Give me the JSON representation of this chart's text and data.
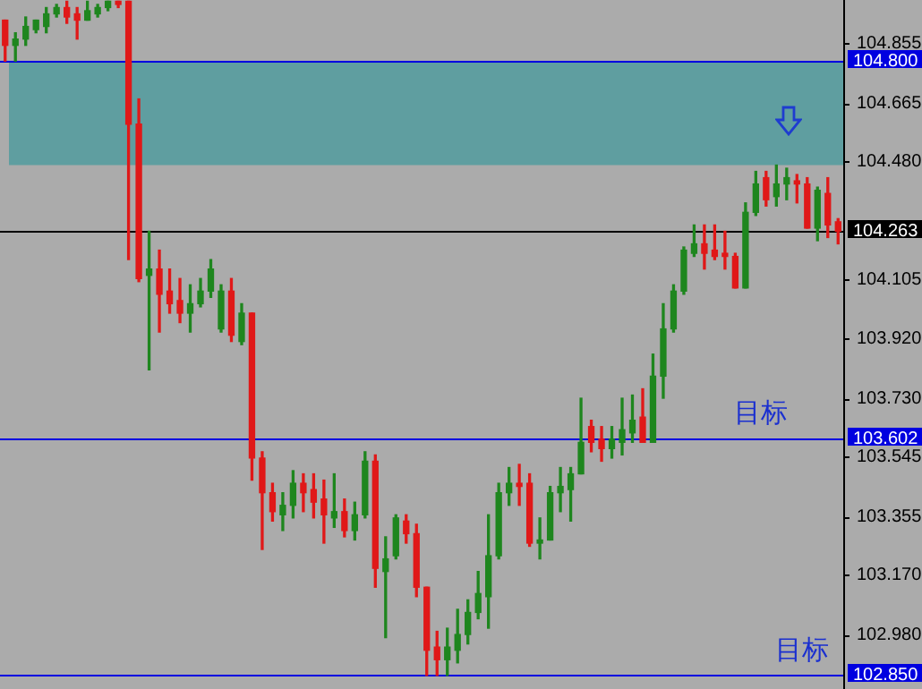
{
  "chart_data": {
    "type": "candlestick",
    "categories": [
      null,
      null,
      null,
      null,
      null,
      null,
      null,
      null,
      null,
      null,
      null,
      null,
      null,
      null,
      null,
      null,
      null,
      null,
      null,
      null,
      null,
      null,
      null,
      null,
      null,
      null,
      null,
      null,
      null,
      null,
      null,
      null,
      null,
      null,
      null,
      null,
      null,
      null,
      null,
      null,
      null,
      null,
      null,
      null,
      null,
      null,
      null,
      null,
      null,
      null,
      null,
      null,
      null,
      null,
      null,
      null,
      null,
      null,
      null,
      null,
      null,
      null,
      null,
      null,
      null,
      null,
      null,
      null,
      null,
      null,
      null,
      null,
      null,
      null,
      null,
      null,
      null,
      null,
      null,
      null,
      null,
      null
    ],
    "ohlc": [
      [
        104.93,
        104.93,
        104.8,
        104.85
      ],
      [
        104.85,
        104.89,
        104.8,
        104.87
      ],
      [
        104.87,
        104.94,
        104.85,
        104.91
      ],
      [
        104.9,
        104.93,
        104.89,
        104.93
      ],
      [
        104.91,
        104.97,
        104.89,
        104.95
      ],
      [
        104.95,
        104.98,
        104.94,
        104.97
      ],
      [
        104.97,
        104.99,
        104.92,
        104.94
      ],
      [
        104.95,
        104.97,
        104.87,
        104.93
      ],
      [
        104.93,
        104.99,
        104.93,
        104.96
      ],
      [
        104.95,
        104.98,
        104.94,
        104.97
      ],
      [
        104.97,
        104.99,
        104.96,
        104.99
      ],
      [
        104.99,
        104.99,
        104.97,
        104.98
      ],
      [
        104.99,
        104.99,
        104.17,
        104.6
      ],
      [
        104.6,
        104.68,
        104.1,
        104.11
      ],
      [
        104.12,
        104.26,
        103.82,
        104.14
      ],
      [
        104.14,
        104.2,
        103.94,
        104.06
      ],
      [
        104.07,
        104.14,
        104.0,
        104.03
      ],
      [
        104.04,
        104.11,
        103.97,
        104.0
      ],
      [
        104.0,
        104.09,
        103.94,
        104.03
      ],
      [
        104.03,
        104.11,
        104.02,
        104.07
      ],
      [
        104.07,
        104.17,
        104.05,
        104.14
      ],
      [
        103.95,
        104.09,
        103.94,
        104.07
      ],
      [
        104.07,
        104.11,
        103.91,
        103.93
      ],
      [
        103.91,
        104.03,
        103.9,
        104.0
      ],
      [
        104.0,
        104.0,
        103.47,
        103.54
      ],
      [
        103.54,
        103.56,
        103.25,
        103.43
      ],
      [
        103.43,
        103.46,
        103.34,
        103.37
      ],
      [
        103.36,
        103.43,
        103.31,
        103.39
      ],
      [
        103.39,
        103.5,
        103.35,
        103.46
      ],
      [
        103.46,
        103.49,
        103.37,
        103.43
      ],
      [
        103.44,
        103.49,
        103.35,
        103.4
      ],
      [
        103.41,
        103.47,
        103.27,
        103.36
      ],
      [
        103.35,
        103.49,
        103.32,
        103.37
      ],
      [
        103.37,
        103.41,
        103.29,
        103.31
      ],
      [
        103.31,
        103.4,
        103.28,
        103.36
      ],
      [
        103.36,
        103.56,
        103.35,
        103.53
      ],
      [
        103.53,
        103.55,
        103.13,
        103.19
      ],
      [
        103.18,
        103.29,
        102.97,
        103.22
      ],
      [
        103.23,
        103.36,
        103.22,
        103.35
      ],
      [
        103.34,
        103.36,
        103.27,
        103.3
      ],
      [
        103.3,
        103.33,
        103.1,
        103.13
      ],
      [
        103.13,
        103.13,
        102.85,
        102.93
      ],
      [
        102.94,
        102.99,
        102.85,
        102.9
      ],
      [
        102.9,
        103.0,
        102.85,
        102.94
      ],
      [
        102.93,
        103.06,
        102.89,
        102.98
      ],
      [
        102.98,
        103.09,
        102.95,
        103.05
      ],
      [
        103.05,
        103.18,
        103.03,
        103.11
      ],
      [
        103.1,
        103.36,
        103.0,
        103.23
      ],
      [
        103.23,
        103.46,
        103.22,
        103.43
      ],
      [
        103.43,
        103.51,
        103.39,
        103.46
      ],
      [
        103.46,
        103.52,
        103.39,
        103.45
      ],
      [
        103.46,
        103.49,
        103.26,
        103.27
      ],
      [
        103.27,
        103.35,
        103.22,
        103.28
      ],
      [
        103.28,
        103.45,
        103.28,
        103.43
      ],
      [
        103.43,
        103.51,
        103.37,
        103.45
      ],
      [
        103.44,
        103.51,
        103.34,
        103.49
      ],
      [
        103.49,
        103.73,
        103.49,
        103.59
      ],
      [
        103.64,
        103.66,
        103.56,
        103.59
      ],
      [
        103.6,
        103.64,
        103.53,
        103.57
      ],
      [
        103.57,
        103.64,
        103.54,
        103.6
      ],
      [
        103.59,
        103.73,
        103.55,
        103.63
      ],
      [
        103.62,
        103.74,
        103.59,
        103.66
      ],
      [
        103.67,
        103.76,
        103.59,
        103.59
      ],
      [
        103.59,
        103.87,
        103.59,
        103.8
      ],
      [
        103.8,
        104.03,
        103.73,
        103.95
      ],
      [
        103.95,
        104.09,
        103.94,
        104.07
      ],
      [
        104.07,
        104.21,
        104.06,
        104.2
      ],
      [
        104.19,
        104.28,
        104.18,
        104.22
      ],
      [
        104.22,
        104.28,
        104.14,
        104.19
      ],
      [
        104.2,
        104.28,
        104.17,
        104.18
      ],
      [
        104.19,
        104.26,
        104.14,
        104.18
      ],
      [
        104.18,
        104.19,
        104.08,
        104.08
      ],
      [
        104.08,
        104.35,
        104.08,
        104.32
      ],
      [
        104.32,
        104.45,
        104.31,
        104.41
      ],
      [
        104.43,
        104.45,
        104.34,
        104.36
      ],
      [
        104.37,
        104.47,
        104.34,
        104.41
      ],
      [
        104.41,
        104.46,
        104.36,
        104.43
      ],
      [
        104.42,
        104.44,
        104.35,
        104.41
      ],
      [
        104.41,
        104.43,
        104.27,
        104.27
      ],
      [
        104.27,
        104.4,
        104.23,
        104.39
      ],
      [
        104.38,
        104.43,
        104.24,
        104.28
      ],
      [
        104.29,
        104.3,
        104.22,
        104.26
      ]
    ],
    "colors": [
      "#e01818",
      "#1e861e",
      "#1e861e",
      "#1e861e",
      "#1e861e",
      "#1e861e",
      "#e01818",
      "#e01818",
      "#1e861e",
      "#1e861e",
      "#1e861e",
      "#e01818",
      "#e01818",
      "#e01818",
      "#1e861e",
      "#e01818",
      "#e01818",
      "#e01818",
      "#1e861e",
      "#1e861e",
      "#1e861e",
      "#1e861e",
      "#e01818",
      "#1e861e",
      "#e01818",
      "#e01818",
      "#e01818",
      "#1e861e",
      "#1e861e",
      "#e01818",
      "#e01818",
      "#e01818",
      "#1e861e",
      "#e01818",
      "#1e861e",
      "#1e861e",
      "#e01818",
      "#1e861e",
      "#1e861e",
      "#e01818",
      "#e01818",
      "#e01818",
      "#e01818",
      "#1e861e",
      "#1e861e",
      "#1e861e",
      "#1e861e",
      "#1e861e",
      "#1e861e",
      "#1e861e",
      "#e01818",
      "#e01818",
      "#1e861e",
      "#1e861e",
      "#1e861e",
      "#1e861e",
      "#1e861e",
      "#e01818",
      "#e01818",
      "#1e861e",
      "#1e861e",
      "#1e861e",
      "#e01818",
      "#1e861e",
      "#1e861e",
      "#1e861e",
      "#1e861e",
      "#1e861e",
      "#e01818",
      "#e01818",
      "#e01818",
      "#e01818",
      "#1e861e",
      "#1e861e",
      "#e01818",
      "#1e861e",
      "#1e861e",
      "#e01818",
      "#e01818",
      "#1e861e",
      "#e01818",
      "#e01818"
    ],
    "ylim": [
      102.807,
      104.994
    ],
    "yticks": [
      {
        "value": 104.855,
        "label": "104.855"
      },
      {
        "value": 104.665,
        "label": "104.665"
      },
      {
        "value": 104.48,
        "label": "104.480"
      },
      {
        "value": 104.105,
        "label": "104.105"
      },
      {
        "value": 103.92,
        "label": "103.920"
      },
      {
        "value": 103.73,
        "label": "103.730"
      },
      {
        "value": 103.545,
        "label": "103.545"
      },
      {
        "value": 103.355,
        "label": "103.355"
      },
      {
        "value": 103.17,
        "label": "103.170"
      },
      {
        "value": 102.98,
        "label": "102.980"
      }
    ],
    "tick_labels": "y",
    "ref_lines": [
      {
        "axis": "y",
        "value": 104.8,
        "label": "104.800",
        "color": "#0000e0"
      },
      {
        "axis": "y",
        "value": 104.263,
        "label": "104.263",
        "color": "#000000"
      },
      {
        "axis": "y",
        "value": 103.602,
        "label": "103.602",
        "color": "#0000e0"
      },
      {
        "axis": "y",
        "value": 102.85,
        "label": "102.850",
        "color": "#0000e0"
      }
    ],
    "bands": [
      {
        "axis": "y",
        "from": 104.47,
        "to": 104.8,
        "label": null,
        "color": "#5f9ea0"
      }
    ],
    "annotations": [
      {
        "text": "目标",
        "y": 103.602
      },
      {
        "text": "目标",
        "y": 102.85
      }
    ]
  }
}
